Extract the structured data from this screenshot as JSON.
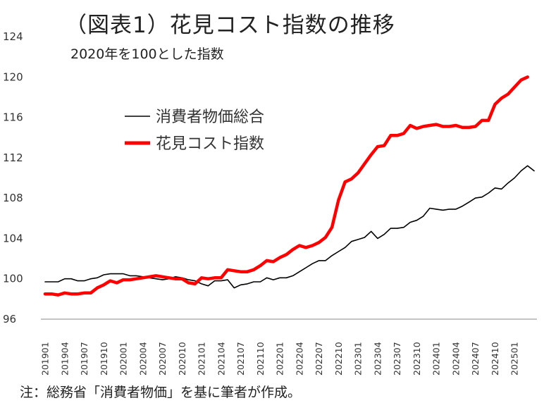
{
  "chart_data": {
    "type": "line",
    "title": "（図表1）花見コスト指数の推移",
    "subtitle": "2020年を100とした指数",
    "note": "注：総務省「消費者物価」を基に筆者が作成。",
    "ylim": [
      96,
      124
    ],
    "yticks": [
      96,
      100,
      104,
      108,
      112,
      116,
      120,
      124
    ],
    "grid": false,
    "legend_position": "left-top",
    "x_tick_labels": [
      "201901",
      "201904",
      "201907",
      "201910",
      "202001",
      "202004",
      "202007",
      "202010",
      "202101",
      "202104",
      "202107",
      "202110",
      "202201",
      "202204",
      "202207",
      "202210",
      "202301",
      "202304",
      "202307",
      "202310",
      "202401",
      "202404",
      "202407",
      "202410",
      "202501"
    ],
    "series": [
      {
        "name": "消費者物価総合",
        "color": "#000000",
        "values": [
          99.7,
          99.7,
          99.7,
          100.0,
          100.0,
          99.8,
          99.8,
          100.0,
          100.1,
          100.4,
          100.5,
          100.5,
          100.5,
          100.3,
          100.3,
          100.2,
          100.1,
          100.0,
          99.9,
          100.0,
          100.2,
          100.1,
          99.9,
          99.8,
          99.5,
          99.3,
          99.8,
          99.8,
          99.9,
          99.1,
          99.4,
          99.5,
          99.7,
          99.7,
          100.1,
          99.9,
          100.1,
          100.1,
          100.3,
          100.7,
          101.1,
          101.5,
          101.8,
          101.8,
          102.3,
          102.7,
          103.1,
          103.7,
          103.9,
          104.1,
          104.7,
          104.0,
          104.4,
          105.0,
          105.0,
          105.1,
          105.6,
          105.8,
          106.2,
          107.0,
          106.9,
          106.8,
          106.9,
          106.9,
          107.2,
          107.6,
          108.0,
          108.1,
          108.5,
          109.0,
          108.9,
          109.5,
          110.0,
          110.7,
          111.2,
          110.7
        ]
      },
      {
        "name": "花見コスト指数",
        "color": "#ff0000",
        "values": [
          98.5,
          98.5,
          98.4,
          98.6,
          98.5,
          98.5,
          98.6,
          98.6,
          99.1,
          99.4,
          99.8,
          99.6,
          99.9,
          99.9,
          100.0,
          100.1,
          100.2,
          100.3,
          100.2,
          100.1,
          100.0,
          100.0,
          99.6,
          99.5,
          100.1,
          100.0,
          100.1,
          100.1,
          100.9,
          100.8,
          100.7,
          100.7,
          100.9,
          101.3,
          101.8,
          101.7,
          102.1,
          102.4,
          102.9,
          103.3,
          103.1,
          103.3,
          103.6,
          104.1,
          105.1,
          107.8,
          109.6,
          109.9,
          110.5,
          111.4,
          112.3,
          113.1,
          113.2,
          114.2,
          114.2,
          114.4,
          115.2,
          114.9,
          115.1,
          115.2,
          115.3,
          115.1,
          115.1,
          115.2,
          115.0,
          115.0,
          115.1,
          115.7,
          115.7,
          117.3,
          117.9,
          118.3,
          119.0,
          119.7,
          120.0
        ]
      }
    ]
  }
}
